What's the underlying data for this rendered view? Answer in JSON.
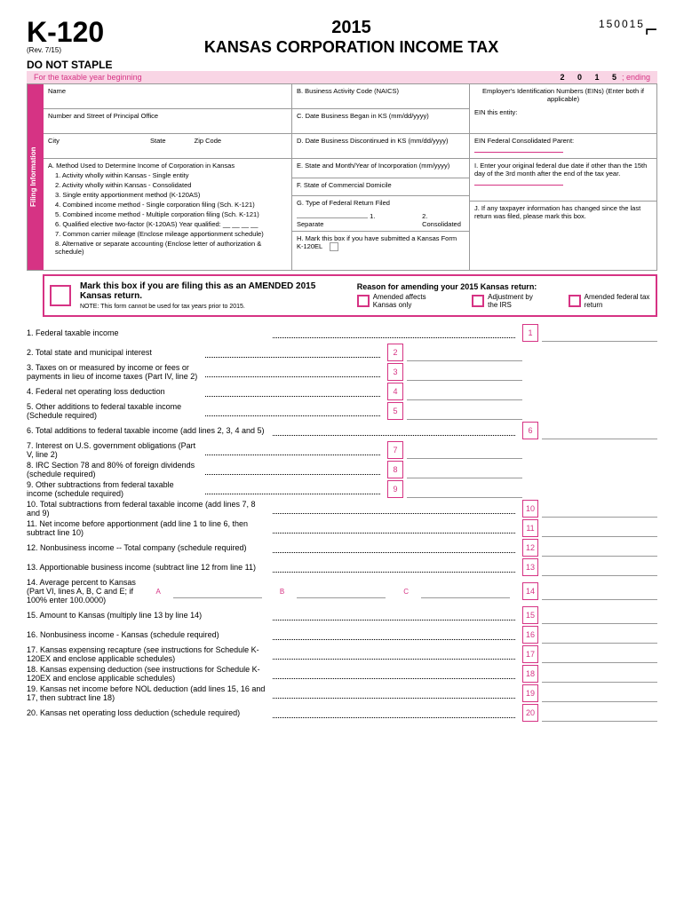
{
  "header": {
    "formCode": "K-120",
    "revision": "(Rev. 7/15)",
    "year": "2015",
    "title": "KANSAS CORPORATION INCOME TAX",
    "formNumber": "150015",
    "noStaple": "DO NOT STAPLE"
  },
  "banner": {
    "beginning": "For the taxable year beginning",
    "year": "2 0 1 5",
    "ending": "; ending"
  },
  "filing": {
    "tabLabel": "Filing Information",
    "name": "Name",
    "address": "Number and Street of Principal Office",
    "city": "City",
    "state": "State",
    "zip": "Zip Code",
    "methodA": "A. Method Used to Determine Income of Corporation in Kansas",
    "methods": [
      "1. Activity wholly within Kansas - Single entity",
      "2. Activity wholly within Kansas - Consolidated",
      "3. Single entity apportionment method (K-120AS)",
      "4. Combined income method - Single corporation filing (Sch. K-121)",
      "5. Combined income method - Multiple corporation filing (Sch. K-121)",
      "6. Qualified elective two-factor (K-120AS)   Year qualified: __ __ __ __",
      "7. Common carrier mileage (Enclose mileage apportionment schedule)",
      "8. Alternative or separate accounting (Enclose letter of authorization & schedule)"
    ],
    "colB": "B. Business Activity Code (NAICS)",
    "colC": "C. Date Business Began in KS (mm/dd/yyyy)",
    "colD": "D. Date Business Discontinued in KS (mm/dd/yyyy)",
    "colE": "E. State and Month/Year of Incorporation (mm/yyyy)",
    "colF": "F. State of Commercial Domicile",
    "colG": "G. Type of Federal Return Filed",
    "separate": "1. Separate",
    "consolidated": "2. Consolidated",
    "colH": "H. Mark this box if you have submitted a Kansas Form K-120EL",
    "ein": "Employer's Identification Numbers (EINs) (Enter both if applicable)",
    "einEntity": "EIN this entity:",
    "einParent": "EIN Federal Consolidated Parent:",
    "colI": "I. Enter your original federal due date if other than the 15th day of the 3rd month after the end of the tax year.",
    "colJ": "J. If any taxpayer information has changed since the last return was filed, please mark this box."
  },
  "amended": {
    "title": "Mark this box if you are filing this as an AMENDED 2015 Kansas return.",
    "note": "NOTE: This form cannot be used for tax years prior to 2015.",
    "reasonTitle": "Reason for amending your 2015 Kansas return:",
    "reasons": [
      "Amended affects Kansas only",
      "Adjustment by the IRS",
      "Amended federal tax return"
    ]
  },
  "lines": [
    {
      "n": "1",
      "label": "1. Federal taxable income",
      "pos": "right"
    },
    {
      "n": "2",
      "label": "2. Total state and municipal interest",
      "pos": "mid"
    },
    {
      "n": "3",
      "label": "3. Taxes on or measured by income or fees or payments in lieu of income taxes (Part IV, line 2)",
      "pos": "mid"
    },
    {
      "n": "4",
      "label": "4. Federal net operating loss deduction",
      "pos": "mid"
    },
    {
      "n": "5",
      "label": "5. Other additions to federal taxable income (Schedule required)",
      "pos": "mid"
    },
    {
      "n": "6",
      "label": "6. Total additions to federal taxable income (add lines 2, 3, 4 and 5)",
      "pos": "right"
    },
    {
      "n": "7",
      "label": "7. Interest on U.S. government obligations (Part V, line 2)",
      "pos": "mid"
    },
    {
      "n": "8",
      "label": "8. IRC Section 78 and 80% of foreign dividends (schedule required)",
      "pos": "mid"
    },
    {
      "n": "9",
      "label": "9. Other subtractions from federal taxable income (schedule required)",
      "pos": "mid"
    },
    {
      "n": "10",
      "label": "10. Total subtractions from federal taxable income (add lines 7, 8 and 9)",
      "pos": "right"
    },
    {
      "n": "11",
      "label": "11. Net income before apportionment (add line 1 to line 6, then subtract line 10)",
      "pos": "right"
    },
    {
      "n": "12",
      "label": "12. Nonbusiness income -- Total company (schedule required)",
      "pos": "right"
    },
    {
      "n": "13",
      "label": "13. Apportionable business income (subtract line 12 from line 11)",
      "pos": "right"
    },
    {
      "n": "14",
      "label": "14. Average percent to Kansas  (Part VI, lines A, B, C and E; if 100% enter 100.0000)",
      "pos": "right",
      "abc": true
    },
    {
      "n": "15",
      "label": "15. Amount to Kansas (multiply line 13 by line 14)",
      "pos": "right"
    },
    {
      "n": "16",
      "label": "16. Nonbusiness income - Kansas (schedule required)",
      "pos": "right"
    },
    {
      "n": "17",
      "label": "17. Kansas expensing recapture (see instructions for Schedule K-120EX and enclose applicable schedules)",
      "pos": "right"
    },
    {
      "n": "18",
      "label": "18. Kansas expensing deduction (see instructions for Schedule K-120EX and enclose applicable schedules)",
      "pos": "right"
    },
    {
      "n": "19",
      "label": "19. Kansas net income before NOL deduction  (add lines 15, 16 and 17, then subtract line 18)",
      "pos": "right"
    },
    {
      "n": "20",
      "label": "20. Kansas net operating loss deduction (schedule required)",
      "pos": "right"
    }
  ]
}
